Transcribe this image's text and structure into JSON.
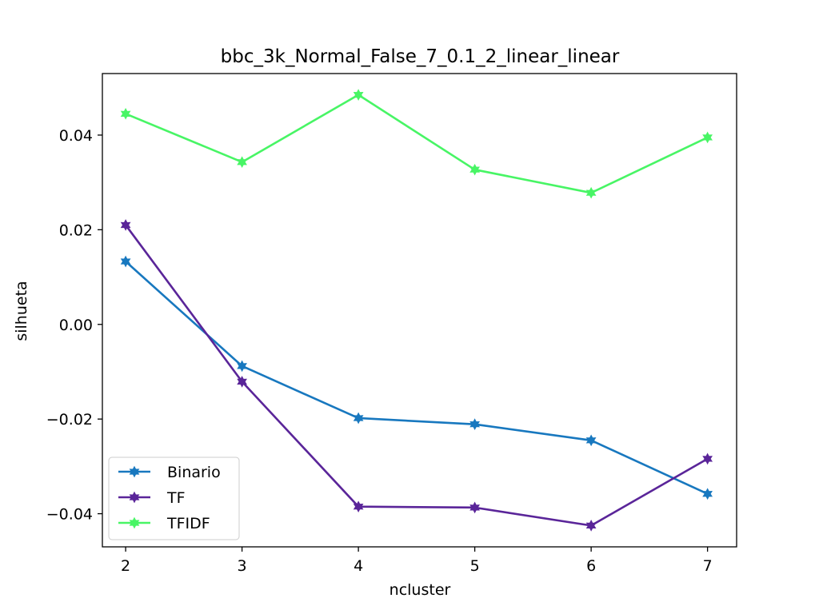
{
  "chart_data": {
    "type": "line",
    "title": "bbc_3k_Normal_False_7_0.1_2_linear_linear",
    "xlabel": "ncluster",
    "ylabel": "silhueta",
    "x": [
      2,
      3,
      4,
      5,
      6,
      7
    ],
    "xlim": [
      1.8,
      7.25
    ],
    "ylim": [
      -0.047,
      0.053
    ],
    "xticks": [
      2,
      3,
      4,
      5,
      6,
      7
    ],
    "xtick_labels": [
      "2",
      "3",
      "4",
      "5",
      "6",
      "7"
    ],
    "yticks": [
      -0.04,
      -0.02,
      0.0,
      0.02,
      0.04
    ],
    "ytick_labels": [
      "−0.04",
      "−0.02",
      "0.00",
      "0.02",
      "0.04"
    ],
    "grid": false,
    "legend_position": "lower-left",
    "marker": "star",
    "series": [
      {
        "name": "Binario",
        "color": "#1878bf",
        "values": [
          0.0133,
          -0.0088,
          -0.0198,
          -0.0211,
          -0.0245,
          -0.0358
        ]
      },
      {
        "name": "TF",
        "color": "#5a2599",
        "values": [
          0.021,
          -0.0121,
          -0.0385,
          -0.0387,
          -0.0425,
          -0.0284
        ]
      },
      {
        "name": "TFIDF",
        "color": "#48f565",
        "values": [
          0.0445,
          0.0343,
          0.0485,
          0.0327,
          0.0278,
          0.0395
        ]
      }
    ]
  }
}
